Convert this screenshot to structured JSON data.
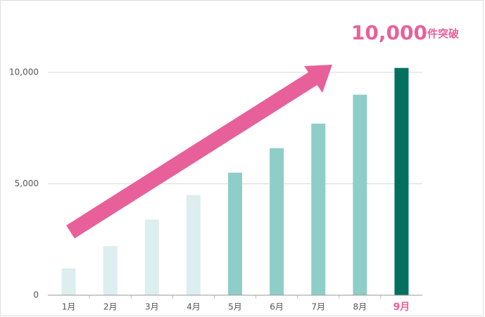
{
  "chart_data": {
    "type": "bar",
    "categories": [
      "1月",
      "2月",
      "3月",
      "4月",
      "5月",
      "6月",
      "7月",
      "8月",
      "9月"
    ],
    "values": [
      1200,
      2200,
      3400,
      4500,
      5500,
      6600,
      7700,
      9000,
      10200
    ],
    "colors": [
      "#dceeed",
      "#dceeed",
      "#dceeed",
      "#dceeed",
      "#8fcdc8",
      "#8fcdc8",
      "#8fcdc8",
      "#8fcdc8",
      "#00705f"
    ],
    "highlight_index": 8,
    "highlight_color": "#e8609a",
    "annotation": [
      "10,000",
      "件突破"
    ],
    "ylim": [
      0,
      10000
    ],
    "yticks": [
      0,
      {
        "value": 5000,
        "label": "5,000"
      },
      {
        "value": 10000,
        "label": "10,000"
      }
    ],
    "grid": true
  }
}
